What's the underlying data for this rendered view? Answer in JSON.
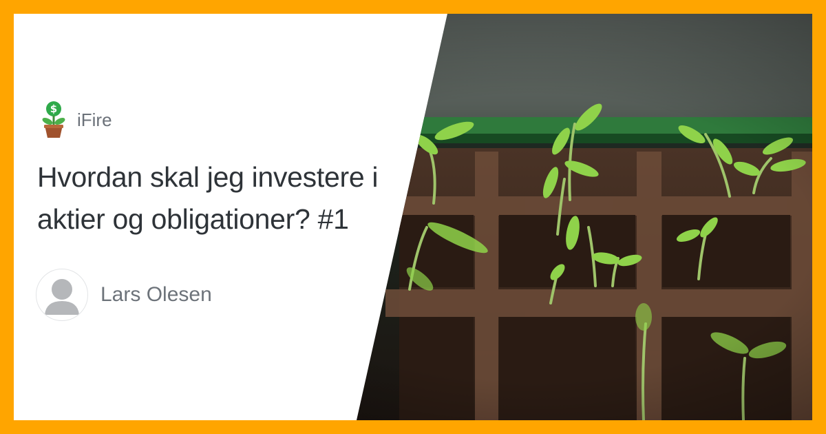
{
  "brand": {
    "name": "iFire",
    "logo_icon": "money-plant-icon"
  },
  "article": {
    "title": "Hvordan skal jeg investere i aktier og obligationer? #1"
  },
  "author": {
    "name": "Lars Olesen",
    "avatar_icon": "default-avatar-icon"
  },
  "colors": {
    "border": "#FFA500",
    "title_text": "#2e3338",
    "muted_text": "#6d737a"
  }
}
